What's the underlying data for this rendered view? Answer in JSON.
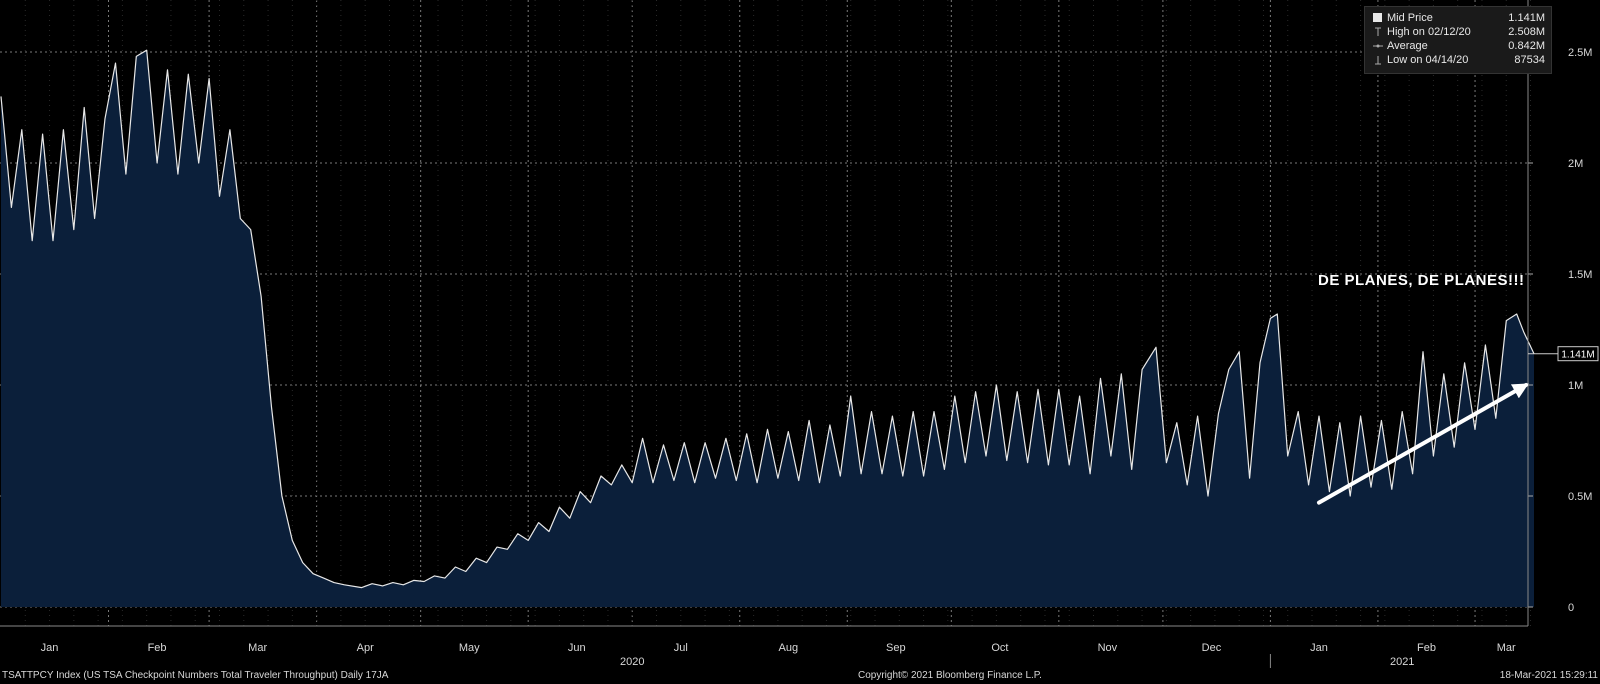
{
  "chart_data": {
    "type": "area",
    "ylim": [
      0,
      2700000
    ],
    "y_ticks": [
      {
        "value": 0,
        "label": "0"
      },
      {
        "value": 500000,
        "label": "0.5M"
      },
      {
        "value": 1000000,
        "label": "1M"
      },
      {
        "value": 1500000,
        "label": "1.5M"
      },
      {
        "value": 2000000,
        "label": "2M"
      },
      {
        "value": 2500000,
        "label": "2.5M"
      }
    ],
    "x_range": [
      "2020-01-01",
      "2021-03-18"
    ],
    "x_ticks": [
      {
        "date": "2020-01-15",
        "label": "Jan"
      },
      {
        "date": "2020-02-15",
        "label": "Feb"
      },
      {
        "date": "2020-03-15",
        "label": "Mar"
      },
      {
        "date": "2020-04-15",
        "label": "Apr"
      },
      {
        "date": "2020-05-15",
        "label": "May"
      },
      {
        "date": "2020-06-15",
        "label": "Jun"
      },
      {
        "date": "2020-07-15",
        "label": "Jul"
      },
      {
        "date": "2020-08-15",
        "label": "Aug"
      },
      {
        "date": "2020-09-15",
        "label": "Sep"
      },
      {
        "date": "2020-10-15",
        "label": "Oct"
      },
      {
        "date": "2020-11-15",
        "label": "Nov"
      },
      {
        "date": "2020-12-15",
        "label": "Dec"
      },
      {
        "date": "2021-01-15",
        "label": "Jan"
      },
      {
        "date": "2021-02-15",
        "label": "Feb"
      },
      {
        "date": "2021-03-10",
        "label": "Mar"
      }
    ],
    "year_labels": [
      {
        "date": "2020-07-01",
        "label": "2020"
      },
      {
        "date": "2021-02-08",
        "label": "2021"
      }
    ],
    "grid": true,
    "last_value_label": "1.141M",
    "series": [
      {
        "points": [
          [
            "2020-01-01",
            2300000
          ],
          [
            "2020-01-04",
            1800000
          ],
          [
            "2020-01-07",
            2150000
          ],
          [
            "2020-01-10",
            1650000
          ],
          [
            "2020-01-13",
            2130000
          ],
          [
            "2020-01-16",
            1650000
          ],
          [
            "2020-01-19",
            2150000
          ],
          [
            "2020-01-22",
            1700000
          ],
          [
            "2020-01-25",
            2250000
          ],
          [
            "2020-01-28",
            1750000
          ],
          [
            "2020-01-31",
            2200000
          ],
          [
            "2020-02-03",
            2450000
          ],
          [
            "2020-02-06",
            1950000
          ],
          [
            "2020-02-09",
            2480000
          ],
          [
            "2020-02-12",
            2508000
          ],
          [
            "2020-02-15",
            2000000
          ],
          [
            "2020-02-18",
            2420000
          ],
          [
            "2020-02-21",
            1950000
          ],
          [
            "2020-02-24",
            2400000
          ],
          [
            "2020-02-27",
            2000000
          ],
          [
            "2020-03-01",
            2380000
          ],
          [
            "2020-03-04",
            1850000
          ],
          [
            "2020-03-07",
            2150000
          ],
          [
            "2020-03-10",
            1750000
          ],
          [
            "2020-03-13",
            1700000
          ],
          [
            "2020-03-16",
            1400000
          ],
          [
            "2020-03-19",
            900000
          ],
          [
            "2020-03-22",
            500000
          ],
          [
            "2020-03-25",
            300000
          ],
          [
            "2020-03-28",
            200000
          ],
          [
            "2020-03-31",
            150000
          ],
          [
            "2020-04-03",
            130000
          ],
          [
            "2020-04-06",
            110000
          ],
          [
            "2020-04-09",
            100000
          ],
          [
            "2020-04-14",
            87534
          ],
          [
            "2020-04-17",
            105000
          ],
          [
            "2020-04-20",
            95000
          ],
          [
            "2020-04-23",
            110000
          ],
          [
            "2020-04-26",
            100000
          ],
          [
            "2020-04-29",
            120000
          ],
          [
            "2020-05-02",
            115000
          ],
          [
            "2020-05-05",
            140000
          ],
          [
            "2020-05-08",
            130000
          ],
          [
            "2020-05-11",
            180000
          ],
          [
            "2020-05-14",
            160000
          ],
          [
            "2020-05-17",
            220000
          ],
          [
            "2020-05-20",
            200000
          ],
          [
            "2020-05-23",
            270000
          ],
          [
            "2020-05-26",
            260000
          ],
          [
            "2020-05-29",
            330000
          ],
          [
            "2020-06-01",
            300000
          ],
          [
            "2020-06-04",
            380000
          ],
          [
            "2020-06-07",
            340000
          ],
          [
            "2020-06-10",
            450000
          ],
          [
            "2020-06-13",
            400000
          ],
          [
            "2020-06-16",
            520000
          ],
          [
            "2020-06-19",
            470000
          ],
          [
            "2020-06-22",
            590000
          ],
          [
            "2020-06-25",
            550000
          ],
          [
            "2020-06-28",
            640000
          ],
          [
            "2020-07-01",
            560000
          ],
          [
            "2020-07-04",
            760000
          ],
          [
            "2020-07-07",
            560000
          ],
          [
            "2020-07-10",
            730000
          ],
          [
            "2020-07-13",
            570000
          ],
          [
            "2020-07-16",
            740000
          ],
          [
            "2020-07-19",
            560000
          ],
          [
            "2020-07-22",
            740000
          ],
          [
            "2020-07-25",
            580000
          ],
          [
            "2020-07-28",
            760000
          ],
          [
            "2020-07-31",
            570000
          ],
          [
            "2020-08-03",
            780000
          ],
          [
            "2020-08-06",
            560000
          ],
          [
            "2020-08-09",
            800000
          ],
          [
            "2020-08-12",
            580000
          ],
          [
            "2020-08-15",
            790000
          ],
          [
            "2020-08-18",
            570000
          ],
          [
            "2020-08-21",
            840000
          ],
          [
            "2020-08-24",
            560000
          ],
          [
            "2020-08-27",
            820000
          ],
          [
            "2020-08-30",
            590000
          ],
          [
            "2020-09-02",
            950000
          ],
          [
            "2020-09-05",
            600000
          ],
          [
            "2020-09-08",
            880000
          ],
          [
            "2020-09-11",
            600000
          ],
          [
            "2020-09-14",
            860000
          ],
          [
            "2020-09-17",
            590000
          ],
          [
            "2020-09-20",
            880000
          ],
          [
            "2020-09-23",
            590000
          ],
          [
            "2020-09-26",
            880000
          ],
          [
            "2020-09-29",
            620000
          ],
          [
            "2020-10-02",
            950000
          ],
          [
            "2020-10-05",
            650000
          ],
          [
            "2020-10-08",
            970000
          ],
          [
            "2020-10-11",
            680000
          ],
          [
            "2020-10-14",
            1000000
          ],
          [
            "2020-10-17",
            660000
          ],
          [
            "2020-10-20",
            970000
          ],
          [
            "2020-10-23",
            650000
          ],
          [
            "2020-10-26",
            980000
          ],
          [
            "2020-10-29",
            640000
          ],
          [
            "2020-11-01",
            980000
          ],
          [
            "2020-11-04",
            640000
          ],
          [
            "2020-11-07",
            950000
          ],
          [
            "2020-11-10",
            600000
          ],
          [
            "2020-11-13",
            1030000
          ],
          [
            "2020-11-16",
            680000
          ],
          [
            "2020-11-19",
            1050000
          ],
          [
            "2020-11-22",
            620000
          ],
          [
            "2020-11-25",
            1070000
          ],
          [
            "2020-11-29",
            1170000
          ],
          [
            "2020-12-02",
            650000
          ],
          [
            "2020-12-05",
            830000
          ],
          [
            "2020-12-08",
            550000
          ],
          [
            "2020-12-11",
            860000
          ],
          [
            "2020-12-14",
            500000
          ],
          [
            "2020-12-17",
            870000
          ],
          [
            "2020-12-20",
            1070000
          ],
          [
            "2020-12-23",
            1150000
          ],
          [
            "2020-12-26",
            580000
          ],
          [
            "2020-12-29",
            1100000
          ],
          [
            "2021-01-01",
            1300000
          ],
          [
            "2021-01-03",
            1320000
          ],
          [
            "2021-01-06",
            680000
          ],
          [
            "2021-01-09",
            880000
          ],
          [
            "2021-01-12",
            550000
          ],
          [
            "2021-01-15",
            860000
          ],
          [
            "2021-01-18",
            520000
          ],
          [
            "2021-01-21",
            830000
          ],
          [
            "2021-01-24",
            500000
          ],
          [
            "2021-01-27",
            860000
          ],
          [
            "2021-01-30",
            540000
          ],
          [
            "2021-02-02",
            840000
          ],
          [
            "2021-02-05",
            530000
          ],
          [
            "2021-02-08",
            880000
          ],
          [
            "2021-02-11",
            600000
          ],
          [
            "2021-02-14",
            1150000
          ],
          [
            "2021-02-17",
            680000
          ],
          [
            "2021-02-20",
            1050000
          ],
          [
            "2021-02-23",
            720000
          ],
          [
            "2021-02-26",
            1100000
          ],
          [
            "2021-03-01",
            800000
          ],
          [
            "2021-03-04",
            1180000
          ],
          [
            "2021-03-07",
            850000
          ],
          [
            "2021-03-10",
            1290000
          ],
          [
            "2021-03-13",
            1320000
          ],
          [
            "2021-03-15",
            1240000
          ],
          [
            "2021-03-18",
            1141000
          ]
        ]
      }
    ],
    "annotation": {
      "text": "DE PLANES, DE PLANES!!!",
      "arrow": {
        "start": [
          "2021-01-15",
          470000
        ],
        "end": [
          "2021-03-18",
          1000000
        ]
      }
    }
  },
  "legend": {
    "rows": [
      {
        "label": "Mid Price",
        "value": "1.141M",
        "icon": "square-marker-icon"
      },
      {
        "label": "High on 02/12/20",
        "value": "2.508M",
        "icon": "high-marker-icon"
      },
      {
        "label": "Average",
        "value": "0.842M",
        "icon": "average-marker-icon"
      },
      {
        "label": "Low on 04/14/20",
        "value": "87534",
        "icon": "low-marker-icon"
      }
    ]
  },
  "footer": {
    "ticker": "TSATTPCY Index (US TSA Checkpoint Numbers Total Traveler Throughput)  Daily 17JA",
    "copyright": "Copyright© 2021 Bloomberg Finance L.P.",
    "timestamp": "18-Mar-2021 15:29:11"
  },
  "colors": {
    "background": "#000000",
    "area_fill": "#0b1f3a",
    "line": "#e8e8e8",
    "grid": "#7a7a7a"
  }
}
